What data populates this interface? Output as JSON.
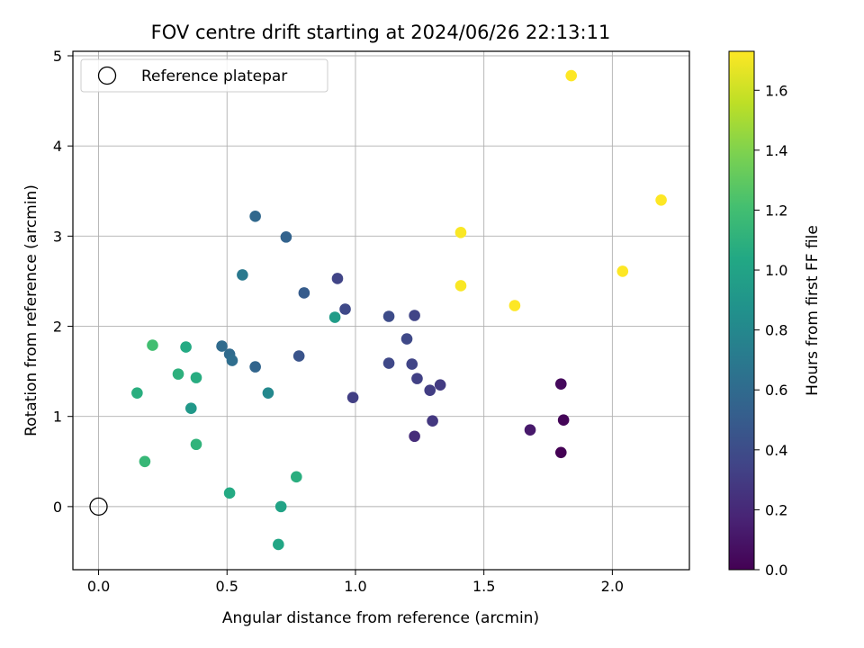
{
  "chart_data": {
    "type": "scatter",
    "title": "FOV centre drift starting at 2024/06/26 22:13:11",
    "xlabel": "Angular distance from reference (arcmin)",
    "ylabel": "Rotation from reference (arcmin)",
    "xlim": [
      -0.1,
      2.3
    ],
    "ylim": [
      -0.7,
      5.05
    ],
    "xticks": [
      0.0,
      0.5,
      1.0,
      1.5,
      2.0
    ],
    "xtick_labels": [
      "0.0",
      "0.5",
      "1.0",
      "1.5",
      "2.0"
    ],
    "yticks": [
      0,
      1,
      2,
      3,
      4,
      5
    ],
    "ytick_labels": [
      "0",
      "1",
      "2",
      "3",
      "4",
      "5"
    ],
    "grid": true,
    "legend": {
      "placement": "top-left",
      "entries": [
        "Reference platepar"
      ]
    },
    "reference_point": {
      "x": 0.0,
      "y": 0.0,
      "label": "Reference platepar"
    },
    "colorbar": {
      "label": "Hours from first FF file",
      "min": 0.0,
      "max": 1.73,
      "colormap": "viridis",
      "ticks": [
        0.0,
        0.2,
        0.4,
        0.6,
        0.8,
        1.0,
        1.2,
        1.4,
        1.6
      ],
      "tick_labels": [
        "0.0",
        "0.2",
        "0.4",
        "0.6",
        "0.8",
        "1.0",
        "1.2",
        "1.4",
        "1.6"
      ]
    },
    "points": [
      {
        "x": 1.8,
        "y": 0.6,
        "hours": 0.0
      },
      {
        "x": 1.81,
        "y": 0.96,
        "hours": 0.02
      },
      {
        "x": 1.8,
        "y": 1.36,
        "hours": 0.04
      },
      {
        "x": 1.68,
        "y": 0.85,
        "hours": 0.12
      },
      {
        "x": 1.23,
        "y": 0.78,
        "hours": 0.22
      },
      {
        "x": 1.3,
        "y": 0.95,
        "hours": 0.28
      },
      {
        "x": 1.33,
        "y": 1.35,
        "hours": 0.3
      },
      {
        "x": 1.29,
        "y": 1.29,
        "hours": 0.31
      },
      {
        "x": 1.24,
        "y": 1.42,
        "hours": 0.33
      },
      {
        "x": 1.22,
        "y": 1.58,
        "hours": 0.35
      },
      {
        "x": 1.13,
        "y": 1.59,
        "hours": 0.37
      },
      {
        "x": 1.2,
        "y": 1.86,
        "hours": 0.38
      },
      {
        "x": 1.23,
        "y": 2.12,
        "hours": 0.35
      },
      {
        "x": 1.13,
        "y": 2.11,
        "hours": 0.4
      },
      {
        "x": 0.99,
        "y": 1.21,
        "hours": 0.32
      },
      {
        "x": 0.96,
        "y": 2.19,
        "hours": 0.38
      },
      {
        "x": 0.93,
        "y": 2.53,
        "hours": 0.35
      },
      {
        "x": 0.78,
        "y": 1.67,
        "hours": 0.45
      },
      {
        "x": 0.8,
        "y": 2.37,
        "hours": 0.5
      },
      {
        "x": 0.73,
        "y": 2.99,
        "hours": 0.55
      },
      {
        "x": 0.61,
        "y": 3.22,
        "hours": 0.58
      },
      {
        "x": 0.61,
        "y": 1.55,
        "hours": 0.56
      },
      {
        "x": 0.51,
        "y": 1.69,
        "hours": 0.6
      },
      {
        "x": 0.52,
        "y": 1.62,
        "hours": 0.62
      },
      {
        "x": 0.48,
        "y": 1.78,
        "hours": 0.6
      },
      {
        "x": 0.56,
        "y": 2.57,
        "hours": 0.7
      },
      {
        "x": 0.66,
        "y": 1.26,
        "hours": 0.8
      },
      {
        "x": 0.92,
        "y": 2.1,
        "hours": 0.95
      },
      {
        "x": 0.36,
        "y": 1.09,
        "hours": 0.92
      },
      {
        "x": 0.77,
        "y": 0.33,
        "hours": 1.08
      },
      {
        "x": 0.71,
        "y": 0.0,
        "hours": 1.0
      },
      {
        "x": 0.7,
        "y": -0.42,
        "hours": 1.02
      },
      {
        "x": 0.51,
        "y": 0.15,
        "hours": 1.05
      },
      {
        "x": 0.38,
        "y": 0.69,
        "hours": 1.12
      },
      {
        "x": 0.38,
        "y": 1.43,
        "hours": 1.07
      },
      {
        "x": 0.34,
        "y": 1.77,
        "hours": 1.05
      },
      {
        "x": 0.31,
        "y": 1.47,
        "hours": 1.1
      },
      {
        "x": 0.15,
        "y": 1.26,
        "hours": 1.08
      },
      {
        "x": 0.18,
        "y": 0.5,
        "hours": 1.15
      },
      {
        "x": 0.21,
        "y": 1.79,
        "hours": 1.2
      },
      {
        "x": 1.41,
        "y": 3.04,
        "hours": 1.72
      },
      {
        "x": 1.41,
        "y": 2.45,
        "hours": 1.72
      },
      {
        "x": 1.62,
        "y": 2.23,
        "hours": 1.73
      },
      {
        "x": 2.04,
        "y": 2.61,
        "hours": 1.73
      },
      {
        "x": 2.19,
        "y": 3.4,
        "hours": 1.73
      },
      {
        "x": 1.84,
        "y": 4.78,
        "hours": 1.73
      }
    ]
  }
}
